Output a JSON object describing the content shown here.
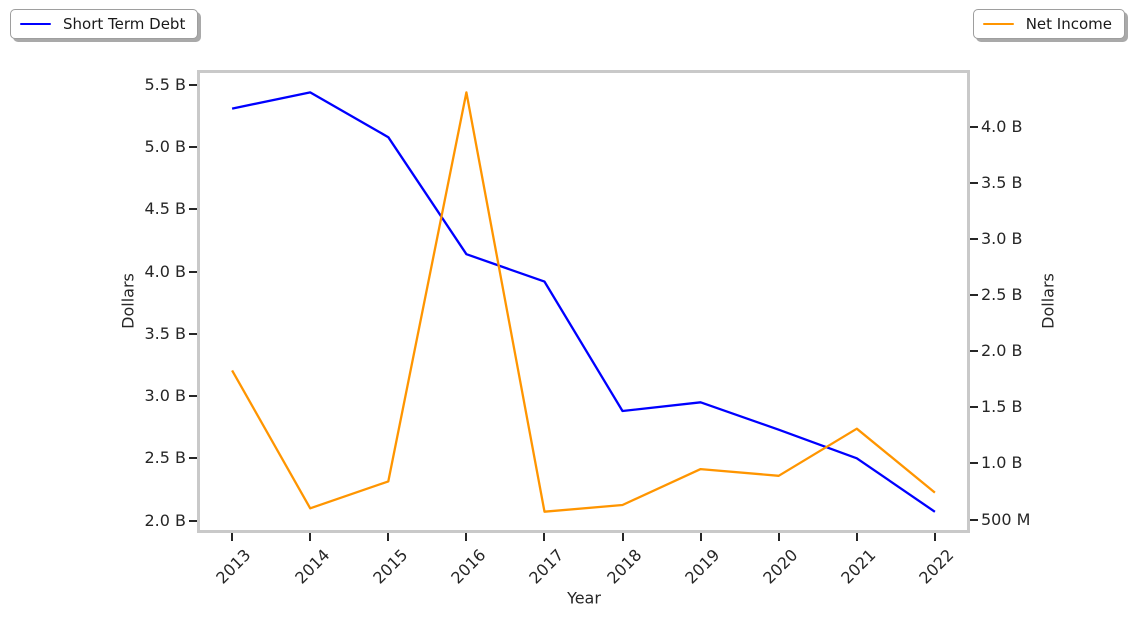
{
  "legend_left": {
    "label": "Short Term Debt",
    "color": "#0000ff"
  },
  "legend_right": {
    "label": "Net Income",
    "color": "#ff9500"
  },
  "chart_data": {
    "type": "line",
    "title": "",
    "xlabel": "Year",
    "grid": false,
    "x": [
      2013,
      2014,
      2015,
      2016,
      2017,
      2018,
      2019,
      2020,
      2021,
      2022
    ],
    "xlim": [
      2012.55,
      2022.45
    ],
    "x_tick_labels": [
      "2013",
      "2014",
      "2015",
      "2016",
      "2017",
      "2018",
      "2019",
      "2020",
      "2021",
      "2022"
    ],
    "series": [
      {
        "name": "Short Term Debt",
        "axis": "left",
        "color": "#0000ff",
        "values_billions": [
          5.31,
          5.44,
          5.08,
          4.14,
          3.92,
          2.88,
          2.95,
          2.73,
          2.5,
          2.07
        ]
      },
      {
        "name": "Net Income",
        "axis": "right",
        "color": "#ff9500",
        "values_billions": [
          1.83,
          0.6,
          0.84,
          4.31,
          0.57,
          0.63,
          0.95,
          0.89,
          1.31,
          0.74
        ]
      }
    ],
    "axes": {
      "left": {
        "label": "Dollars",
        "lim": [
          1.9,
          5.62
        ],
        "ticks": [
          {
            "value": 5.5,
            "label": "5.5 B"
          },
          {
            "value": 5.0,
            "label": "5.0 B"
          },
          {
            "value": 4.5,
            "label": "4.5 B"
          },
          {
            "value": 4.0,
            "label": "4.0 B"
          },
          {
            "value": 3.5,
            "label": "3.5 B"
          },
          {
            "value": 3.0,
            "label": "3.0 B"
          },
          {
            "value": 2.5,
            "label": "2.5 B"
          },
          {
            "value": 2.0,
            "label": "2.0 B"
          }
        ]
      },
      "right": {
        "label": "Dollars",
        "lim": [
          0.38,
          4.51
        ],
        "ticks": [
          {
            "value": 4.0,
            "label": "4.0 B"
          },
          {
            "value": 3.5,
            "label": "3.5 B"
          },
          {
            "value": 3.0,
            "label": "3.0 B"
          },
          {
            "value": 2.5,
            "label": "2.5 B"
          },
          {
            "value": 2.0,
            "label": "2.0 B"
          },
          {
            "value": 1.5,
            "label": "1.5 B"
          },
          {
            "value": 1.0,
            "label": "1.0 B"
          },
          {
            "value": 0.5,
            "label": "500 M"
          }
        ]
      }
    }
  }
}
